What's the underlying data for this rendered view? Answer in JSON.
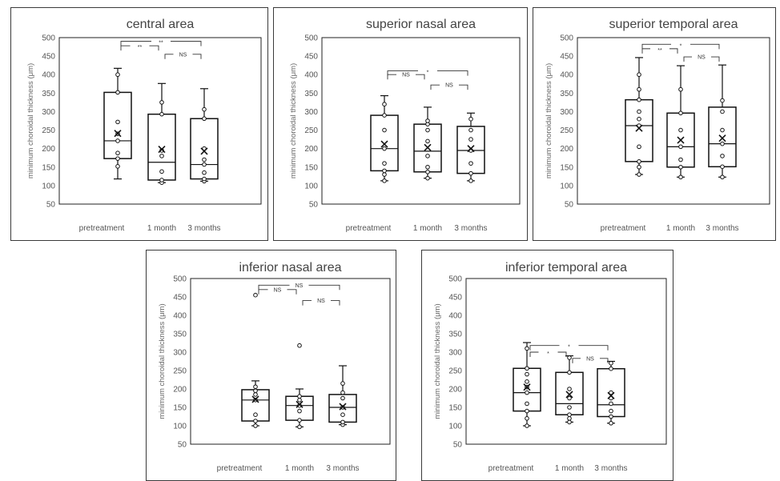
{
  "chart_data": [
    {
      "type": "box",
      "title": "central area",
      "ylabel": "minimum choroidal thickness (μm)",
      "ylim": [
        50,
        500
      ],
      "yticks": [
        50,
        100,
        150,
        200,
        250,
        300,
        350,
        400,
        450,
        500
      ],
      "categories": [
        "pretreatment",
        "1 month",
        "3 months"
      ],
      "boxes": [
        {
          "whisker_low": 118,
          "q1": 173,
          "median": 221,
          "q3": 352,
          "whisker_high": 417,
          "mean": 241,
          "points": [
            152,
            173,
            188,
            221,
            240,
            272,
            352,
            400
          ]
        },
        {
          "whisker_low": 108,
          "q1": 115,
          "median": 163,
          "q3": 293,
          "whisker_high": 376,
          "mean": 198,
          "points": [
            108,
            115,
            138,
            180,
            195,
            293,
            325
          ]
        },
        {
          "whisker_low": 112,
          "q1": 118,
          "median": 157,
          "q3": 281,
          "whisker_high": 362,
          "mean": 193,
          "points": [
            112,
            118,
            135,
            157,
            170,
            200,
            281,
            306
          ]
        }
      ],
      "brackets": [
        {
          "from": 0,
          "to": 1,
          "label": "**"
        },
        {
          "from": 0,
          "to": 2,
          "label": "**"
        },
        {
          "from": 1,
          "to": 2,
          "label": "NS"
        }
      ]
    },
    {
      "type": "box",
      "title": "superior nasal area",
      "ylabel": "minimum choroidal thickness (μm)",
      "ylim": [
        50,
        500
      ],
      "yticks": [
        50,
        100,
        150,
        200,
        250,
        300,
        350,
        400,
        450,
        500
      ],
      "categories": [
        "pretreatment",
        "1 month",
        "3 months"
      ],
      "boxes": [
        {
          "whisker_low": 113,
          "q1": 140,
          "median": 200,
          "q3": 290,
          "whisker_high": 343,
          "mean": 212,
          "points": [
            113,
            130,
            140,
            160,
            200,
            250,
            290,
            320
          ]
        },
        {
          "whisker_low": 120,
          "q1": 137,
          "median": 193,
          "q3": 266,
          "whisker_high": 312,
          "mean": 203,
          "points": [
            120,
            137,
            150,
            180,
            220,
            250,
            266,
            275
          ]
        },
        {
          "whisker_low": 113,
          "q1": 133,
          "median": 195,
          "q3": 260,
          "whisker_high": 296,
          "mean": 200,
          "points": [
            113,
            133,
            160,
            195,
            225,
            250,
            280
          ]
        }
      ],
      "brackets": [
        {
          "from": 0,
          "to": 1,
          "label": "NS"
        },
        {
          "from": 0,
          "to": 2,
          "label": "*"
        },
        {
          "from": 1,
          "to": 2,
          "label": "NS"
        }
      ]
    },
    {
      "type": "box",
      "title": "superior temporal area",
      "ylabel": "minimum choroidal thickness (μm)",
      "ylim": [
        50,
        500
      ],
      "yticks": [
        50,
        100,
        150,
        200,
        250,
        300,
        350,
        400,
        450,
        500
      ],
      "categories": [
        "pretreatment",
        "1 month",
        "3 months"
      ],
      "boxes": [
        {
          "whisker_low": 130,
          "q1": 165,
          "median": 262,
          "q3": 332,
          "whisker_high": 446,
          "mean": 255,
          "points": [
            130,
            150,
            165,
            205,
            262,
            280,
            300,
            332,
            360,
            400
          ]
        },
        {
          "whisker_low": 123,
          "q1": 150,
          "median": 205,
          "q3": 296,
          "whisker_high": 424,
          "mean": 223,
          "points": [
            123,
            150,
            170,
            205,
            250,
            296,
            360
          ]
        },
        {
          "whisker_low": 123,
          "q1": 151,
          "median": 213,
          "q3": 312,
          "whisker_high": 426,
          "mean": 228,
          "points": [
            123,
            151,
            180,
            213,
            250,
            300,
            330
          ]
        }
      ],
      "brackets": [
        {
          "from": 0,
          "to": 1,
          "label": "**"
        },
        {
          "from": 0,
          "to": 2,
          "label": "*"
        },
        {
          "from": 1,
          "to": 2,
          "label": "NS"
        }
      ]
    },
    {
      "type": "box",
      "title": "inferior nasal area",
      "ylabel": "minimum choroidal thickness (μm)",
      "ylim": [
        50,
        500
      ],
      "yticks": [
        50,
        100,
        150,
        200,
        250,
        300,
        350,
        400,
        450,
        500
      ],
      "categories": [
        "pretreatment",
        "1 month",
        "3 months"
      ],
      "boxes": [
        {
          "whisker_low": 100,
          "q1": 113,
          "median": 170,
          "q3": 198,
          "whisker_high": 222,
          "mean": 172,
          "points": [
            100,
            113,
            130,
            170,
            185,
            195,
            206,
            455
          ]
        },
        {
          "whisker_low": 97,
          "q1": 115,
          "median": 155,
          "q3": 180,
          "whisker_high": 200,
          "mean": 158,
          "points": [
            97,
            115,
            140,
            155,
            170,
            180,
            318
          ]
        },
        {
          "whisker_low": 103,
          "q1": 110,
          "median": 150,
          "q3": 185,
          "whisker_high": 263,
          "mean": 152,
          "points": [
            103,
            110,
            130,
            150,
            175,
            190,
            215
          ]
        }
      ],
      "brackets": [
        {
          "from": 0,
          "to": 1,
          "label": "NS"
        },
        {
          "from": 0,
          "to": 2,
          "label": "NS"
        },
        {
          "from": 1,
          "to": 2,
          "label": "NS"
        }
      ]
    },
    {
      "type": "box",
      "title": "inferior temporal area",
      "ylabel": "minimum choroidal thickness (μm)",
      "ylim": [
        50,
        500
      ],
      "yticks": [
        50,
        100,
        150,
        200,
        250,
        300,
        350,
        400,
        450,
        500
      ],
      "categories": [
        "pretreatment",
        "1 month",
        "3 months"
      ],
      "boxes": [
        {
          "whisker_low": 100,
          "q1": 140,
          "median": 190,
          "q3": 256,
          "whisker_high": 326,
          "mean": 205,
          "points": [
            100,
            120,
            140,
            160,
            190,
            205,
            220,
            240,
            256,
            310
          ]
        },
        {
          "whisker_low": 110,
          "q1": 130,
          "median": 160,
          "q3": 245,
          "whisker_high": 290,
          "mean": 185,
          "points": [
            110,
            120,
            130,
            150,
            175,
            200,
            245,
            285
          ]
        },
        {
          "whisker_low": 107,
          "q1": 125,
          "median": 157,
          "q3": 255,
          "whisker_high": 275,
          "mean": 182,
          "points": [
            107,
            125,
            140,
            160,
            175,
            190,
            255,
            270
          ]
        }
      ],
      "brackets": [
        {
          "from": 0,
          "to": 1,
          "label": "*"
        },
        {
          "from": 0,
          "to": 2,
          "label": "*"
        },
        {
          "from": 1,
          "to": 2,
          "label": "NS"
        }
      ]
    }
  ]
}
